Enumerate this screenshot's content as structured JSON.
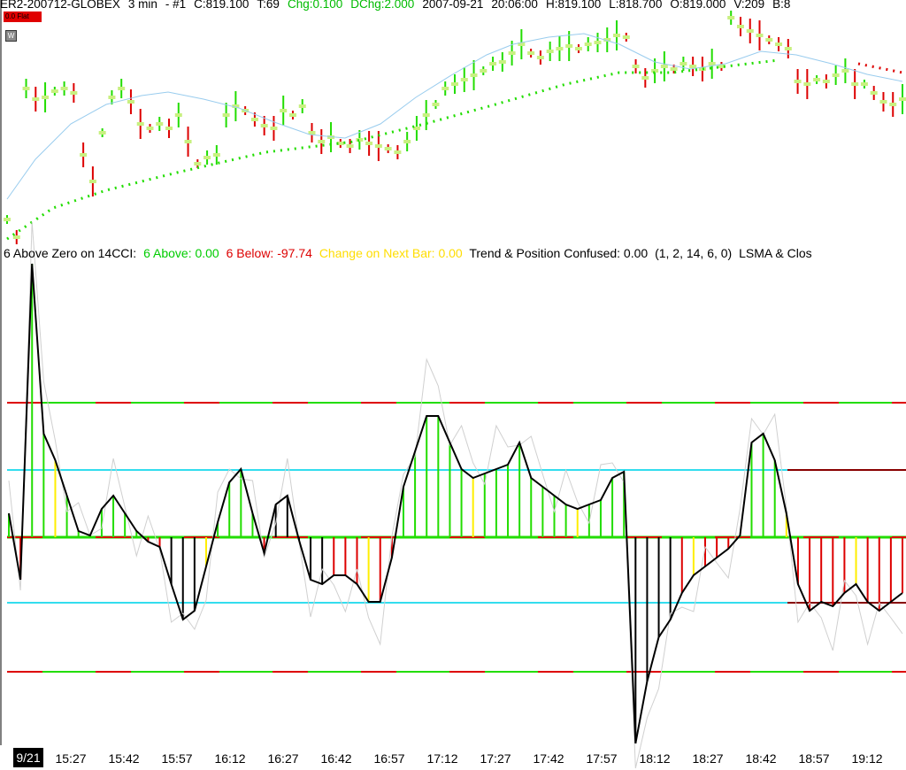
{
  "header": {
    "symbol": "ER2-200712-GLOBEX",
    "interval": "3 min",
    "instance": "- #1",
    "close": "C:819.100",
    "ticks": "T:69",
    "change": "Chg:0.100",
    "daily_change": "DChg:2.000",
    "date": "2007-09-21",
    "time": "20:06:00",
    "high": "H:819.100",
    "low": "L:818.700",
    "open": "O:819.000",
    "volume": "V:209",
    "bid": "B:8"
  },
  "position_badge": "0.0 Flat",
  "window_button": "W",
  "indicator": {
    "name": "6 Above Zero on 14CCI:",
    "above": "6 Above: 0.00",
    "below": "6 Below: -97.74",
    "change_next": "Change on Next Bar: 0.00",
    "trend_conf": "Trend & Position Confused: 0.00",
    "params": "(1, 2, 14, 6, 0)",
    "lsma": "LSMA & Clos"
  },
  "time_axis": {
    "date_label": "9/21",
    "ticks": [
      "15:27",
      "15:42",
      "15:57",
      "16:12",
      "16:27",
      "16:42",
      "16:57",
      "17:12",
      "17:27",
      "17:42",
      "17:57",
      "18:12",
      "18:27",
      "18:42",
      "18:57",
      "19:12"
    ]
  },
  "colors": {
    "up": "#00dd00",
    "down": "#dd0000",
    "neutral": "#000000",
    "change": "#ffee00",
    "price_bar_tick": "#c8f080",
    "ma_line": "#99ccee",
    "level_cyan": "#33ddee"
  }
}
